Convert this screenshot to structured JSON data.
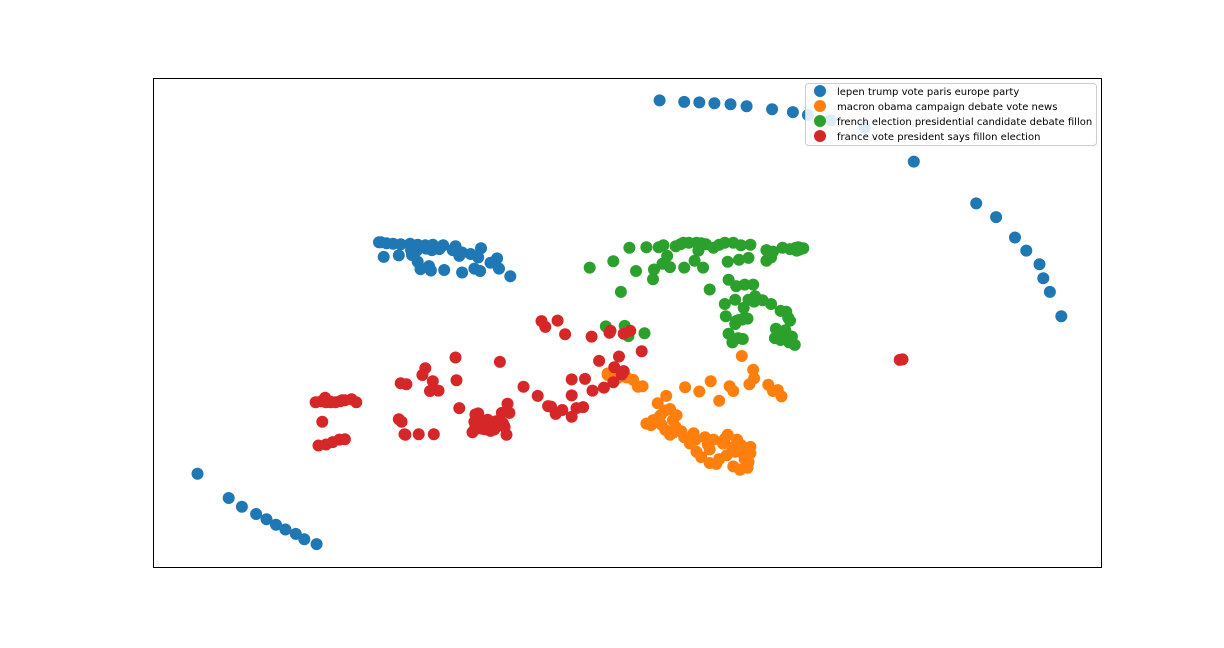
{
  "chart_data": {
    "type": "scatter",
    "title": "",
    "xlabel": "",
    "ylabel": "",
    "xlim": [
      0,
      1000
    ],
    "ylim": [
      0,
      1000
    ],
    "grid": false,
    "axis_ticks": false,
    "legend_position": "top-right",
    "series": [
      {
        "name": "lepen trump vote paris europe party",
        "color": "#1f77b4",
        "points": [
          [
            534,
            958
          ],
          [
            560,
            955
          ],
          [
            576,
            954
          ],
          [
            592,
            952
          ],
          [
            609,
            950
          ],
          [
            626,
            946
          ],
          [
            653,
            940
          ],
          [
            675,
            934
          ],
          [
            691,
            928
          ],
          [
            715,
            917
          ],
          [
            751,
            902
          ],
          [
            803,
            832
          ],
          [
            869,
            746
          ],
          [
            890,
            718
          ],
          [
            910,
            676
          ],
          [
            922,
            649
          ],
          [
            936,
            621
          ],
          [
            940,
            592
          ],
          [
            947,
            564
          ],
          [
            959,
            514
          ],
          [
            237,
            666
          ],
          [
            239,
            666
          ],
          [
            245,
            664
          ],
          [
            252,
            663
          ],
          [
            260,
            662
          ],
          [
            270,
            663
          ],
          [
            278,
            661
          ],
          [
            286,
            660
          ],
          [
            294,
            661
          ],
          [
            305,
            660
          ],
          [
            318,
            658
          ],
          [
            345,
            654
          ],
          [
            293,
            650
          ],
          [
            271,
            650
          ],
          [
            277,
            649
          ],
          [
            287,
            653
          ],
          [
            301,
            652
          ],
          [
            315,
            650
          ],
          [
            325,
            645
          ],
          [
            334,
            642
          ],
          [
            322,
            638
          ],
          [
            342,
            635
          ],
          [
            362,
            633
          ],
          [
            358,
            625
          ],
          [
            355,
            624
          ],
          [
            376,
            596
          ],
          [
            272,
            640
          ],
          [
            258,
            639
          ],
          [
            242,
            636
          ],
          [
            278,
            626
          ],
          [
            290,
            617
          ],
          [
            281,
            611
          ],
          [
            306,
            609
          ],
          [
            292,
            608
          ],
          [
            325,
            604
          ],
          [
            338,
            612
          ],
          [
            344,
            607
          ],
          [
            364,
            612
          ],
          [
            45,
            190
          ],
          [
            78,
            140
          ],
          [
            92,
            122
          ],
          [
            107,
            107
          ],
          [
            118,
            96
          ],
          [
            128,
            85
          ],
          [
            138,
            75
          ],
          [
            149,
            66
          ],
          [
            158,
            55
          ],
          [
            171,
            45
          ]
        ]
      },
      {
        "name": "macron obama campaign debate vote news",
        "color": "#ff7f0e",
        "points": [
          [
            479,
            393
          ],
          [
            479,
            396
          ],
          [
            485,
            392
          ],
          [
            490,
            387
          ],
          [
            499,
            388
          ],
          [
            506,
            383
          ],
          [
            511,
            369
          ],
          [
            516,
            370
          ],
          [
            532,
            335
          ],
          [
            541,
            350
          ],
          [
            561,
            368
          ],
          [
            576,
            359
          ],
          [
            588,
            380
          ],
          [
            597,
            340
          ],
          [
            608,
            370
          ],
          [
            612,
            360
          ],
          [
            629,
            374
          ],
          [
            634,
            386
          ],
          [
            621,
            432
          ],
          [
            633,
            404
          ],
          [
            649,
            373
          ],
          [
            654,
            360
          ],
          [
            663,
            349
          ],
          [
            659,
            362
          ],
          [
            525,
            290
          ],
          [
            527,
            300
          ],
          [
            533,
            305
          ],
          [
            536,
            291
          ],
          [
            540,
            280
          ],
          [
            545,
            270
          ],
          [
            549,
            275
          ],
          [
            551,
            286
          ],
          [
            548,
            300
          ],
          [
            552,
            310
          ],
          [
            540,
            320
          ],
          [
            545,
            323
          ],
          [
            535,
            310
          ],
          [
            520,
            293
          ],
          [
            560,
            265
          ],
          [
            566,
            252
          ],
          [
            573,
            235
          ],
          [
            578,
            224
          ],
          [
            587,
            212
          ],
          [
            594,
            210
          ],
          [
            597,
            220
          ],
          [
            605,
            228
          ],
          [
            611,
            244
          ],
          [
            614,
            235
          ],
          [
            622,
            232
          ],
          [
            620,
            249
          ],
          [
            603,
            262
          ],
          [
            591,
            260
          ],
          [
            585,
            250
          ],
          [
            582,
            265
          ],
          [
            570,
            273
          ],
          [
            557,
            277
          ],
          [
            572,
            260
          ],
          [
            587,
            240
          ],
          [
            601,
            252
          ],
          [
            606,
            270
          ],
          [
            616,
            260
          ],
          [
            630,
            232
          ],
          [
            624,
            220
          ],
          [
            612,
            205
          ],
          [
            619,
            198
          ],
          [
            627,
            202
          ],
          [
            628,
            214
          ],
          [
            630,
            245
          ]
        ]
      },
      {
        "name": "french election presidential candidate debate fillon",
        "color": "#2ca02c",
        "points": [
          [
            460,
            614
          ],
          [
            485,
            627
          ],
          [
            502,
            655
          ],
          [
            520,
            656
          ],
          [
            533,
            656
          ],
          [
            538,
            660
          ],
          [
            551,
            658
          ],
          [
            556,
            662
          ],
          [
            559,
            665
          ],
          [
            565,
            665
          ],
          [
            573,
            665
          ],
          [
            578,
            664
          ],
          [
            583,
            662
          ],
          [
            591,
            655
          ],
          [
            597,
            661
          ],
          [
            603,
            665
          ],
          [
            612,
            665
          ],
          [
            620,
            660
          ],
          [
            630,
            661
          ],
          [
            647,
            650
          ],
          [
            654,
            647
          ],
          [
            664,
            655
          ],
          [
            672,
            652
          ],
          [
            682,
            651
          ],
          [
            686,
            654
          ],
          [
            678,
            655
          ],
          [
            679,
            649
          ],
          [
            681,
            656
          ],
          [
            542,
            638
          ],
          [
            537,
            622
          ],
          [
            545,
            615
          ],
          [
            571,
            628
          ],
          [
            575,
            649
          ],
          [
            606,
            626
          ],
          [
            618,
            630
          ],
          [
            628,
            634
          ],
          [
            652,
            635
          ],
          [
            647,
            628
          ],
          [
            560,
            614
          ],
          [
            580,
            614
          ],
          [
            587,
            569
          ],
          [
            607,
            589
          ],
          [
            615,
            576
          ],
          [
            624,
            579
          ],
          [
            633,
            579
          ],
          [
            635,
            555
          ],
          [
            643,
            547
          ],
          [
            652,
            539
          ],
          [
            662,
            525
          ],
          [
            668,
            523
          ],
          [
            670,
            511
          ],
          [
            672,
            505
          ],
          [
            657,
            488
          ],
          [
            667,
            485
          ],
          [
            665,
            472
          ],
          [
            674,
            472
          ],
          [
            656,
            469
          ],
          [
            662,
            465
          ],
          [
            671,
            460
          ],
          [
            677,
            455
          ],
          [
            673,
            463
          ],
          [
            604,
            514
          ],
          [
            607,
            478
          ],
          [
            611,
            460
          ],
          [
            617,
            469
          ],
          [
            622,
            467
          ],
          [
            614,
            498
          ],
          [
            615,
            504
          ],
          [
            617,
            506
          ],
          [
            621,
            507
          ],
          [
            624,
            511
          ],
          [
            627,
            509
          ],
          [
            603,
            539
          ],
          [
            614,
            548
          ],
          [
            623,
            531
          ],
          [
            634,
            544
          ],
          [
            628,
            548
          ],
          [
            527,
            590
          ],
          [
            528,
            610
          ],
          [
            493,
            564
          ],
          [
            477,
            493
          ],
          [
            501,
            473
          ],
          [
            497,
            494
          ],
          [
            518,
            479
          ],
          [
            509,
            607
          ]
        ]
      },
      {
        "name": "france vote president says fillon election",
        "color": "#d62728",
        "points": [
          [
            170,
            337
          ],
          [
            176,
            339
          ],
          [
            181,
            337
          ],
          [
            186,
            338
          ],
          [
            191,
            337
          ],
          [
            196,
            339
          ],
          [
            201,
            341
          ],
          [
            208,
            343
          ],
          [
            198,
            341
          ],
          [
            186,
            337
          ],
          [
            180,
            346
          ],
          [
            213,
            337
          ],
          [
            177,
            297
          ],
          [
            173,
            248
          ],
          [
            181,
            250
          ],
          [
            188,
            255
          ],
          [
            195,
            260
          ],
          [
            201,
            261
          ],
          [
            258,
            302
          ],
          [
            261,
            297
          ],
          [
            264,
            271
          ],
          [
            260,
            376
          ],
          [
            266,
            374
          ],
          [
            283,
            393
          ],
          [
            286,
            407
          ],
          [
            294,
            380
          ],
          [
            291,
            360
          ],
          [
            300,
            361
          ],
          [
            265,
            270
          ],
          [
            279,
            271
          ],
          [
            295,
            271
          ],
          [
            322,
            325
          ],
          [
            318,
            429
          ],
          [
            319,
            382
          ],
          [
            339,
            312
          ],
          [
            342,
            314
          ],
          [
            336,
            275
          ],
          [
            339,
            287
          ],
          [
            348,
            297
          ],
          [
            353,
            299
          ],
          [
            352,
            301
          ],
          [
            362,
            296
          ],
          [
            368,
            294
          ],
          [
            341,
            283
          ],
          [
            350,
            281
          ],
          [
            338,
            297
          ],
          [
            339,
            283
          ],
          [
            345,
            286
          ],
          [
            373,
            334
          ],
          [
            367,
            315
          ],
          [
            375,
            315
          ],
          [
            358,
            286
          ],
          [
            357,
            285
          ],
          [
            359,
            281
          ],
          [
            369,
            290
          ],
          [
            355,
            292
          ],
          [
            350,
            294
          ],
          [
            361,
            298
          ],
          [
            364,
            295
          ],
          [
            370,
            286
          ],
          [
            347,
            282
          ],
          [
            355,
            278
          ],
          [
            367,
            291
          ],
          [
            372,
            270
          ],
          [
            365,
            420
          ],
          [
            390,
            369
          ],
          [
            405,
            350
          ],
          [
            416,
            329
          ],
          [
            424,
            313
          ],
          [
            431,
            321
          ],
          [
            441,
            307
          ],
          [
            409,
            504
          ],
          [
            426,
            505
          ],
          [
            413,
            492
          ],
          [
            419,
            328
          ],
          [
            446,
            325
          ],
          [
            453,
            327
          ],
          [
            434,
            477
          ],
          [
            441,
            384
          ],
          [
            455,
            385
          ],
          [
            485,
            378
          ],
          [
            441,
            351
          ],
          [
            463,
            361
          ],
          [
            475,
            367
          ],
          [
            494,
            394
          ],
          [
            496,
            401
          ],
          [
            482,
            484
          ],
          [
            462,
            472
          ],
          [
            470,
            422
          ],
          [
            481,
            480
          ],
          [
            496,
            478
          ],
          [
            503,
            484
          ],
          [
            515,
            442
          ],
          [
            486,
            409
          ],
          [
            491,
            431
          ],
          [
            788,
            424
          ],
          [
            791,
            425
          ]
        ]
      }
    ]
  }
}
